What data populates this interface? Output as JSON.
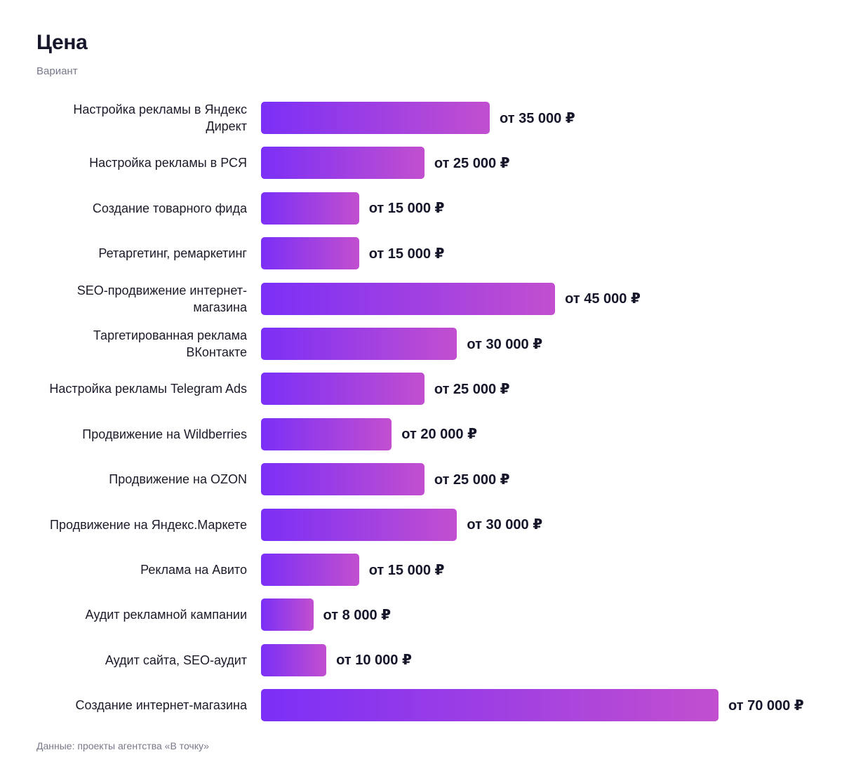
{
  "header": {
    "title": "Цена",
    "subtitle": "Вариант"
  },
  "footer": {
    "source": "Данные: проекты агентства «В точку»"
  },
  "colors": {
    "bar_start": "#7b2ff7",
    "bar_end": "#c24fcf"
  },
  "chart_data": {
    "type": "bar",
    "orientation": "horizontal",
    "title": "Цена",
    "subtitle": "Вариант",
    "value_prefix": "от",
    "value_unit": "₽",
    "xlim": [
      0,
      70000
    ],
    "grid": false,
    "legend": "none",
    "categories": [
      "Настройка рекламы в Яндекс Директ",
      "Настройка рекламы в РСЯ",
      "Создание товарного фида",
      "Ретаргетинг, ремаркетинг",
      "SEO-продвижение интернет-магазина",
      "Таргетированная реклама ВКонтакте",
      "Настройка рекламы Telegram Ads",
      "Продвижение на Wildberries",
      "Продвижение на OZON",
      "Продвижение на Яндекс.Маркете",
      "Реклама на Авито",
      "Аудит рекламной кампании",
      "Аудит сайта, SEO-аудит",
      "Создание интернет-магазина"
    ],
    "values": [
      35000,
      25000,
      15000,
      15000,
      45000,
      30000,
      25000,
      20000,
      25000,
      30000,
      15000,
      8000,
      10000,
      70000
    ],
    "value_labels": [
      "от 35 000 ₽",
      "от 25 000 ₽",
      "от 15 000 ₽",
      "от 15 000 ₽",
      "от 45 000 ₽",
      "от 30 000 ₽",
      "от 25 000 ₽",
      "от 20 000 ₽",
      "от 25 000 ₽",
      "от 30 000 ₽",
      "от 15 000 ₽",
      "от 8 000 ₽",
      "от 10 000 ₽",
      "от 70 000 ₽"
    ],
    "source": "Данные: проекты агентства «В точку»"
  }
}
